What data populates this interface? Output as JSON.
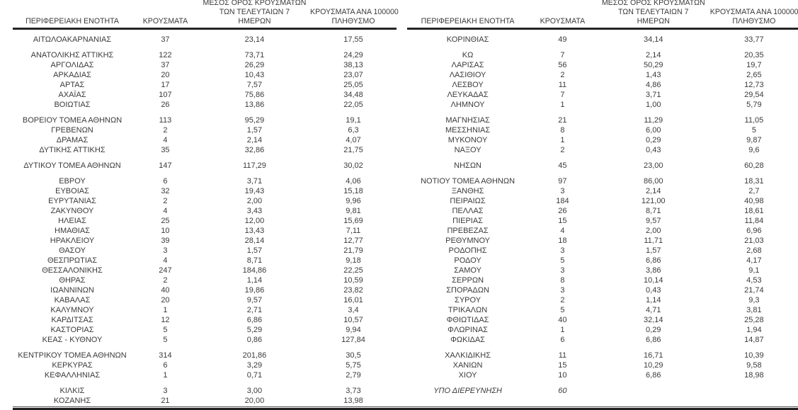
{
  "colors": {
    "background": "#ffffff",
    "text": "#3b3b3b",
    "rule": "#242424"
  },
  "headers": {
    "region": "ΠΕΡΙΦΕΡΕΙΑΚΗ ΕΝΟΤΗΤΑ",
    "cases": "ΚΡΟΥΣΜΑΤΑ",
    "avg7_lines": [
      "ΜΕΣΟΣ ΟΡΟΣ ΚΡΟΥΣΜΑΤΩΝ",
      "ΤΩΝ ΤΕΛΕΥΤΑΙΩΝ 7",
      "ΗΜΕΡΩΝ"
    ],
    "per100k_lines": [
      "ΚΡΟΥΣΜΑΤΑ ΑΝΑ 100000",
      "ΠΛΗΘΥΣΜΟ"
    ]
  },
  "left_table": {
    "groups": [
      [
        {
          "region": "ΑΙΤΩΛΟΑΚΑΡΝΑΝΙΑΣ",
          "cases": "37",
          "avg7": "23,14",
          "per100k": "17,55"
        }
      ],
      [
        {
          "region": "ΑΝΑΤΟΛΙΚΗΣ ΑΤΤΙΚΗΣ",
          "cases": "122",
          "avg7": "73,71",
          "per100k": "24,29"
        },
        {
          "region": "ΑΡΓΟΛΙΔΑΣ",
          "cases": "37",
          "avg7": "26,29",
          "per100k": "38,13"
        },
        {
          "region": "ΑΡΚΑΔΙΑΣ",
          "cases": "20",
          "avg7": "10,43",
          "per100k": "23,07"
        },
        {
          "region": "ΑΡΤΑΣ",
          "cases": "17",
          "avg7": "7,57",
          "per100k": "25,05"
        },
        {
          "region": "ΑΧΑΪΑΣ",
          "cases": "107",
          "avg7": "75,86",
          "per100k": "34,48"
        },
        {
          "region": "ΒΟΙΩΤΙΑΣ",
          "cases": "26",
          "avg7": "13,86",
          "per100k": "22,05"
        }
      ],
      [
        {
          "region": "ΒΟΡΕΙΟΥ ΤΟΜΕΑ ΑΘΗΝΩΝ",
          "cases": "113",
          "avg7": "95,29",
          "per100k": "19,1"
        },
        {
          "region": "ΓΡΕΒΕΝΩΝ",
          "cases": "2",
          "avg7": "1,57",
          "per100k": "6,3"
        },
        {
          "region": "ΔΡΑΜΑΣ",
          "cases": "4",
          "avg7": "2,14",
          "per100k": "4,07"
        },
        {
          "region": "ΔΥΤΙΚΗΣ ΑΤΤΙΚΗΣ",
          "cases": "35",
          "avg7": "32,86",
          "per100k": "21,75"
        }
      ],
      [
        {
          "region": "ΔΥΤΙΚΟΥ ΤΟΜΕΑ ΑΘΗΝΩΝ",
          "cases": "147",
          "avg7": "117,29",
          "per100k": "30,02"
        }
      ],
      [
        {
          "region": "ΕΒΡΟΥ",
          "cases": "6",
          "avg7": "3,71",
          "per100k": "4,06"
        },
        {
          "region": "ΕΥΒΟΙΑΣ",
          "cases": "32",
          "avg7": "19,43",
          "per100k": "15,18"
        },
        {
          "region": "ΕΥΡΥΤΑΝΙΑΣ",
          "cases": "2",
          "avg7": "2,00",
          "per100k": "9,96"
        },
        {
          "region": "ΖΑΚΥΝΘΟΥ",
          "cases": "4",
          "avg7": "3,43",
          "per100k": "9,81"
        },
        {
          "region": "ΗΛΕΙΑΣ",
          "cases": "25",
          "avg7": "12,00",
          "per100k": "15,69"
        },
        {
          "region": "ΗΜΑΘΙΑΣ",
          "cases": "10",
          "avg7": "13,43",
          "per100k": "7,11"
        },
        {
          "region": "ΗΡΑΚΛΕΙΟΥ",
          "cases": "39",
          "avg7": "28,14",
          "per100k": "12,77"
        },
        {
          "region": "ΘΑΣΟΥ",
          "cases": "3",
          "avg7": "1,57",
          "per100k": "21,79"
        },
        {
          "region": "ΘΕΣΠΡΩΤΙΑΣ",
          "cases": "4",
          "avg7": "8,71",
          "per100k": "9,18"
        },
        {
          "region": "ΘΕΣΣΑΛΟΝΙΚΗΣ",
          "cases": "247",
          "avg7": "184,86",
          "per100k": "22,25"
        },
        {
          "region": "ΘΗΡΑΣ",
          "cases": "2",
          "avg7": "1,14",
          "per100k": "10,59"
        },
        {
          "region": "ΙΩΑΝΝΙΝΩΝ",
          "cases": "40",
          "avg7": "19,86",
          "per100k": "23,82"
        },
        {
          "region": "ΚΑΒΑΛΑΣ",
          "cases": "20",
          "avg7": "9,57",
          "per100k": "16,01"
        },
        {
          "region": "ΚΑΛΥΜΝΟΥ",
          "cases": "1",
          "avg7": "2,71",
          "per100k": "3,4"
        },
        {
          "region": "ΚΑΡΔΙΤΣΑΣ",
          "cases": "12",
          "avg7": "6,86",
          "per100k": "10,57"
        },
        {
          "region": "ΚΑΣΤΟΡΙΑΣ",
          "cases": "5",
          "avg7": "5,29",
          "per100k": "9,94"
        },
        {
          "region": "ΚΕΑΣ - ΚΥΘΝΟΥ",
          "cases": "5",
          "avg7": "0,86",
          "per100k": "127,84"
        }
      ],
      [
        {
          "region": "ΚΕΝΤΡΙΚΟΥ ΤΟΜΕΑ ΑΘΗΝΩΝ",
          "cases": "314",
          "avg7": "201,86",
          "per100k": "30,5"
        },
        {
          "region": "ΚΕΡΚΥΡΑΣ",
          "cases": "6",
          "avg7": "3,29",
          "per100k": "5,75"
        },
        {
          "region": "ΚΕΦΑΛΛΗΝΙΑΣ",
          "cases": "1",
          "avg7": "0,71",
          "per100k": "2,79"
        }
      ],
      [
        {
          "region": "ΚΙΛΚΙΣ",
          "cases": "3",
          "avg7": "3,00",
          "per100k": "3,73"
        },
        {
          "region": "ΚΟΖΑΝΗΣ",
          "cases": "21",
          "avg7": "20,00",
          "per100k": "13,98"
        }
      ]
    ]
  },
  "right_table": {
    "groups": [
      [
        {
          "region": "ΚΟΡΙΝΘΙΑΣ",
          "cases": "49",
          "avg7": "34,14",
          "per100k": "33,77"
        }
      ],
      [
        {
          "region": "ΚΩ",
          "cases": "7",
          "avg7": "2,14",
          "per100k": "20,35"
        },
        {
          "region": "ΛΑΡΙΣΑΣ",
          "cases": "56",
          "avg7": "50,29",
          "per100k": "19,7"
        },
        {
          "region": "ΛΑΣΙΘΙΟΥ",
          "cases": "2",
          "avg7": "1,43",
          "per100k": "2,65"
        },
        {
          "region": "ΛΕΣΒΟΥ",
          "cases": "11",
          "avg7": "4,86",
          "per100k": "12,73"
        },
        {
          "region": "ΛΕΥΚΑΔΑΣ",
          "cases": "7",
          "avg7": "3,71",
          "per100k": "29,54"
        },
        {
          "region": "ΛΗΜΝΟΥ",
          "cases": "1",
          "avg7": "1,00",
          "per100k": "5,79"
        }
      ],
      [
        {
          "region": "ΜΑΓΝΗΣΙΑΣ",
          "cases": "21",
          "avg7": "11,29",
          "per100k": "11,05"
        },
        {
          "region": "ΜΕΣΣΗΝΙΑΣ",
          "cases": "8",
          "avg7": "6,00",
          "per100k": "5"
        },
        {
          "region": "ΜΥΚΟΝΟΥ",
          "cases": "1",
          "avg7": "0,29",
          "per100k": "9,87"
        },
        {
          "region": "ΝΑΞΟΥ",
          "cases": "2",
          "avg7": "0,43",
          "per100k": "9,6"
        }
      ],
      [
        {
          "region": "ΝΗΣΩΝ",
          "cases": "45",
          "avg7": "23,00",
          "per100k": "60,28"
        }
      ],
      [
        {
          "region": "ΝΟΤΙΟΥ ΤΟΜΕΑ ΑΘΗΝΩΝ",
          "cases": "97",
          "avg7": "86,00",
          "per100k": "18,31"
        },
        {
          "region": "ΞΑΝΘΗΣ",
          "cases": "3",
          "avg7": "2,14",
          "per100k": "2,7"
        },
        {
          "region": "ΠΕΙΡΑΙΩΣ",
          "cases": "184",
          "avg7": "121,00",
          "per100k": "40,98"
        },
        {
          "region": "ΠΕΛΛΑΣ",
          "cases": "26",
          "avg7": "8,71",
          "per100k": "18,61"
        },
        {
          "region": "ΠΙΕΡΙΑΣ",
          "cases": "15",
          "avg7": "9,57",
          "per100k": "11,84"
        },
        {
          "region": "ΠΡΕΒΕΖΑΣ",
          "cases": "4",
          "avg7": "2,00",
          "per100k": "6,96"
        },
        {
          "region": "ΡΕΘΥΜΝΟΥ",
          "cases": "18",
          "avg7": "11,71",
          "per100k": "21,03"
        },
        {
          "region": "ΡΟΔΟΠΗΣ",
          "cases": "3",
          "avg7": "1,57",
          "per100k": "2,68"
        },
        {
          "region": "ΡΟΔΟΥ",
          "cases": "5",
          "avg7": "6,86",
          "per100k": "4,17"
        },
        {
          "region": "ΣΑΜΟΥ",
          "cases": "3",
          "avg7": "3,86",
          "per100k": "9,1"
        },
        {
          "region": "ΣΕΡΡΩΝ",
          "cases": "8",
          "avg7": "10,14",
          "per100k": "4,53"
        },
        {
          "region": "ΣΠΟΡΑΔΩΝ",
          "cases": "3",
          "avg7": "0,43",
          "per100k": "21,74"
        },
        {
          "region": "ΣΥΡΟΥ",
          "cases": "2",
          "avg7": "1,14",
          "per100k": "9,3"
        },
        {
          "region": "ΤΡΙΚΑΛΩΝ",
          "cases": "5",
          "avg7": "4,71",
          "per100k": "3,81"
        },
        {
          "region": "ΦΘΙΩΤΙΔΑΣ",
          "cases": "40",
          "avg7": "32,14",
          "per100k": "25,28"
        },
        {
          "region": "ΦΛΩΡΙΝΑΣ",
          "cases": "1",
          "avg7": "0,29",
          "per100k": "1,94"
        },
        {
          "region": "ΦΩΚΙΔΑΣ",
          "cases": "6",
          "avg7": "6,86",
          "per100k": "14,87"
        }
      ],
      [
        {
          "region": "ΧΑΛΚΙΔΙΚΗΣ",
          "cases": "11",
          "avg7": "16,71",
          "per100k": "10,39"
        },
        {
          "region": "ΧΑΝΙΩΝ",
          "cases": "15",
          "avg7": "10,29",
          "per100k": "9,58"
        },
        {
          "region": "ΧΙΟΥ",
          "cases": "10",
          "avg7": "6,86",
          "per100k": "18,98"
        }
      ],
      [
        {
          "region": "ΥΠΟ ΔΙΕΡΕΥΝΗΣΗ",
          "cases": "60",
          "avg7": "",
          "per100k": "",
          "italic": true
        },
        {
          "region": "",
          "cases": "",
          "avg7": "",
          "per100k": ""
        }
      ]
    ]
  }
}
